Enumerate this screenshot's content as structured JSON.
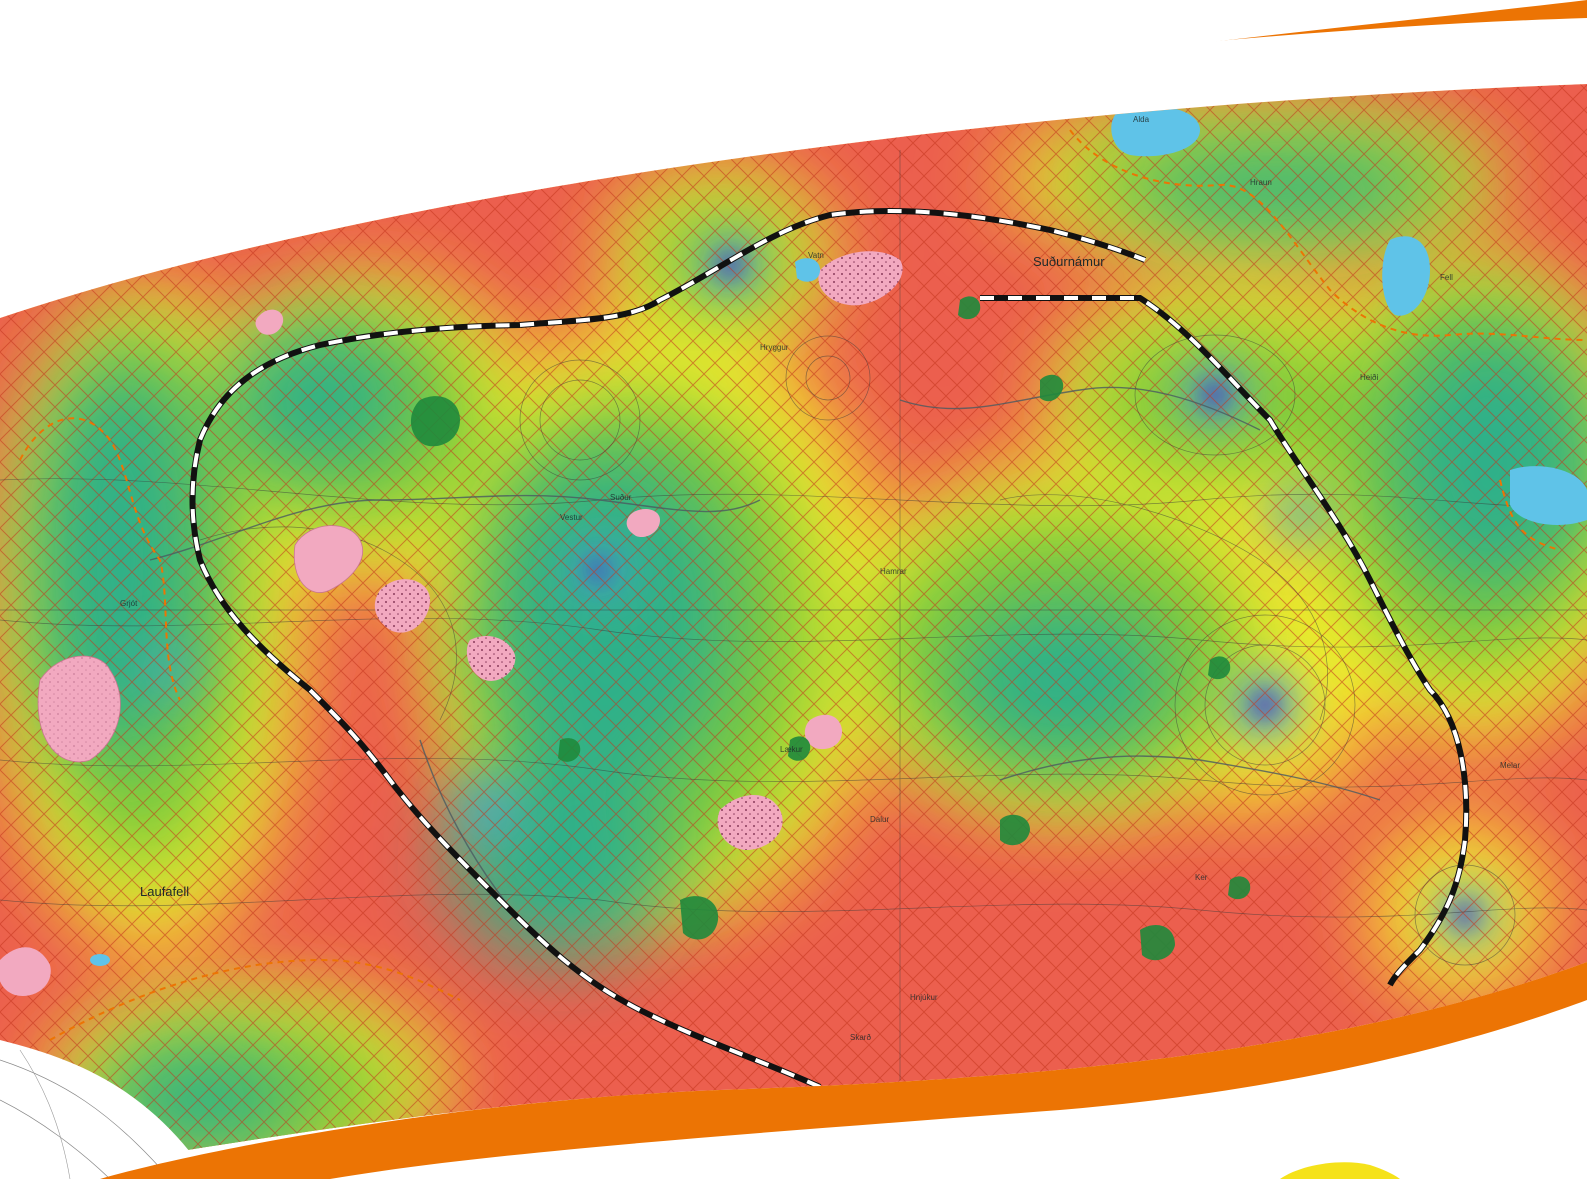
{
  "map": {
    "labels": {
      "sudurnamur": "Suðurnámur",
      "laufafell": "Laufafell",
      "vestur": "Vestur",
      "sudur": "Suður",
      "hamrar": "Hamrar",
      "dalur": "Dalur",
      "laekur": "Lækur",
      "vatn": "Vatn",
      "heidi": "Heiði",
      "hraun": "Hraun",
      "hnjukur": "Hnjúkur",
      "melar": "Melar",
      "skard": "Skarð",
      "ker": "Ker",
      "hryggur": "Hryggur",
      "grjot": "Grjót",
      "alda": "Alda",
      "fell": "Fell"
    }
  },
  "colors": {
    "high": "#ec5f4e",
    "medium": "#f4ed2a",
    "low": "#7fca3a",
    "very_low": "#2fb089",
    "lowest": "#4aa6c8",
    "minimum": "#4a3ec2",
    "frame": "#ec7404",
    "lava": "#f2a9c0",
    "water": "#5fc3e8",
    "vegetation": "#1f8a3c",
    "hatch": "#c4341c",
    "boundary": "#111111"
  }
}
